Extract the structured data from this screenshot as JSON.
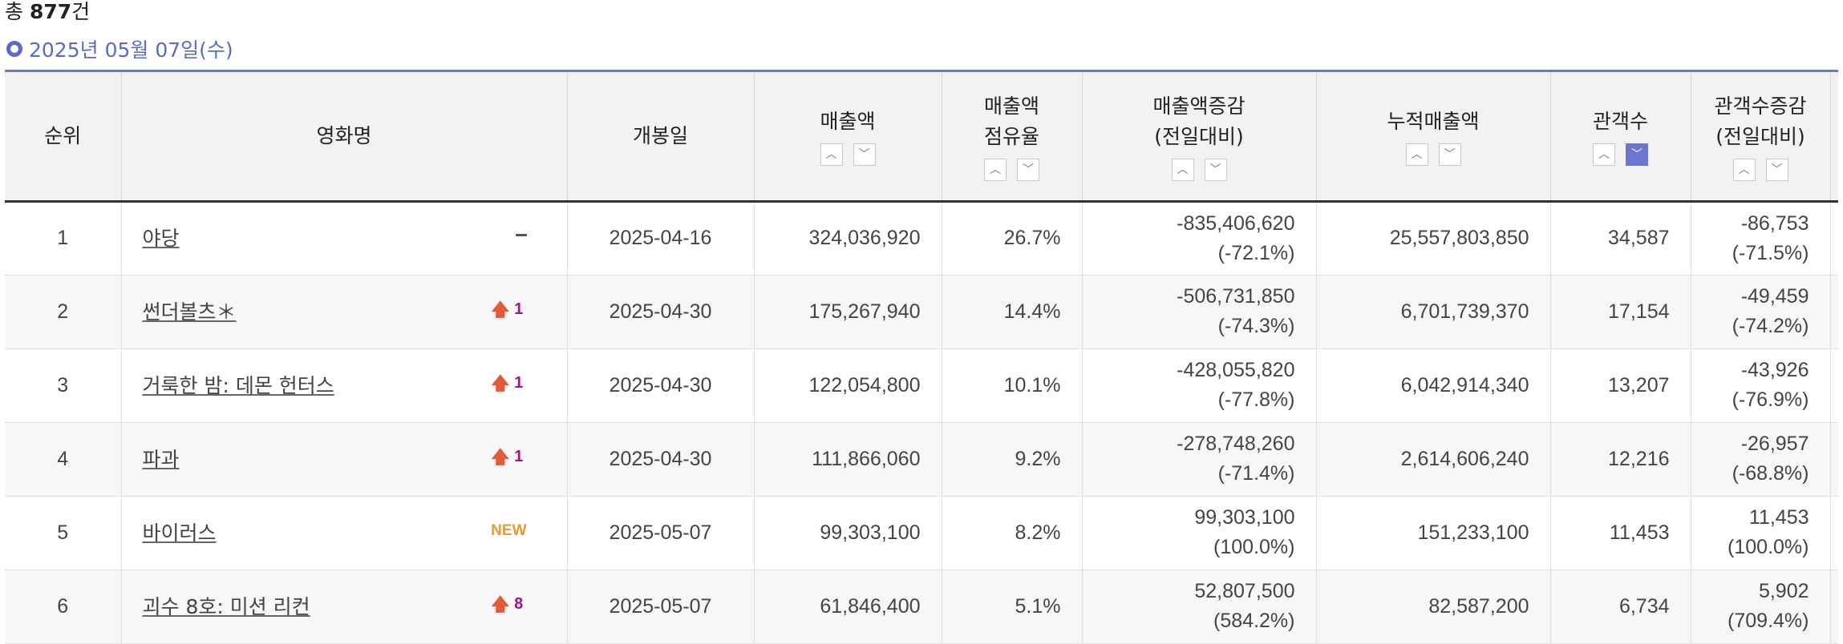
{
  "summary": {
    "prefix": "총 ",
    "count": "877",
    "suffix": "건"
  },
  "date_label": "2025년 05월 07일(수)",
  "columns": {
    "rank": "순위",
    "title": "영화명",
    "open_date": "개봉일",
    "sales": "매출액",
    "share_1": "매출액",
    "share_2": "점유율",
    "sales_change_1": "매출액증감",
    "sales_change_2": "(전일대비)",
    "cum_sales": "누적매출액",
    "audience": "관객수",
    "aud_change_1": "관객수증감",
    "aud_change_2": "(전일대비)"
  },
  "sort_icons": {
    "up": "sort-asc-icon",
    "down": "sort-desc-icon",
    "active_column": "audience-desc"
  },
  "rows": [
    {
      "rank": "1",
      "title": "야당",
      "trend": "same",
      "trend_value": "",
      "open_date": "2025-04-16",
      "sales": "324,036,920",
      "share": "26.7%",
      "sales_change": "-835,406,620",
      "sales_change_pct": "(-72.1%)",
      "cum_sales": "25,557,803,850",
      "audience": "34,587",
      "aud_change": "-86,753",
      "aud_change_pct": "(-71.5%)"
    },
    {
      "rank": "2",
      "title": "썬더볼츠＊",
      "trend": "up",
      "trend_value": "1",
      "open_date": "2025-04-30",
      "sales": "175,267,940",
      "share": "14.4%",
      "sales_change": "-506,731,850",
      "sales_change_pct": "(-74.3%)",
      "cum_sales": "6,701,739,370",
      "audience": "17,154",
      "aud_change": "-49,459",
      "aud_change_pct": "(-74.2%)"
    },
    {
      "rank": "3",
      "title": "거룩한 밤: 데몬 헌터스",
      "trend": "up",
      "trend_value": "1",
      "open_date": "2025-04-30",
      "sales": "122,054,800",
      "share": "10.1%",
      "sales_change": "-428,055,820",
      "sales_change_pct": "(-77.8%)",
      "cum_sales": "6,042,914,340",
      "audience": "13,207",
      "aud_change": "-43,926",
      "aud_change_pct": "(-76.9%)"
    },
    {
      "rank": "4",
      "title": "파과",
      "trend": "up",
      "trend_value": "1",
      "open_date": "2025-04-30",
      "sales": "111,866,060",
      "share": "9.2%",
      "sales_change": "-278,748,260",
      "sales_change_pct": "(-71.4%)",
      "cum_sales": "2,614,606,240",
      "audience": "12,216",
      "aud_change": "-26,957",
      "aud_change_pct": "(-68.8%)"
    },
    {
      "rank": "5",
      "title": "바이러스",
      "trend": "new",
      "trend_value": "NEW",
      "open_date": "2025-05-07",
      "sales": "99,303,100",
      "share": "8.2%",
      "sales_change": "99,303,100",
      "sales_change_pct": "(100.0%)",
      "cum_sales": "151,233,100",
      "audience": "11,453",
      "aud_change": "11,453",
      "aud_change_pct": "(100.0%)"
    },
    {
      "rank": "6",
      "title": "괴수 8호: 미션 리컨",
      "trend": "up",
      "trend_value": "8",
      "open_date": "2025-05-07",
      "sales": "61,846,400",
      "share": "5.1%",
      "sales_change": "52,807,500",
      "sales_change_pct": "(584.2%)",
      "cum_sales": "82,587,200",
      "audience": "6,734",
      "aud_change": "5,902",
      "aud_change_pct": "(709.4%)"
    }
  ],
  "colors": {
    "accent": "#6b76cf",
    "trend_up_arrow": "#e05a3c",
    "trend_value": "#a0157b",
    "new_badge": "#e89a2d"
  }
}
